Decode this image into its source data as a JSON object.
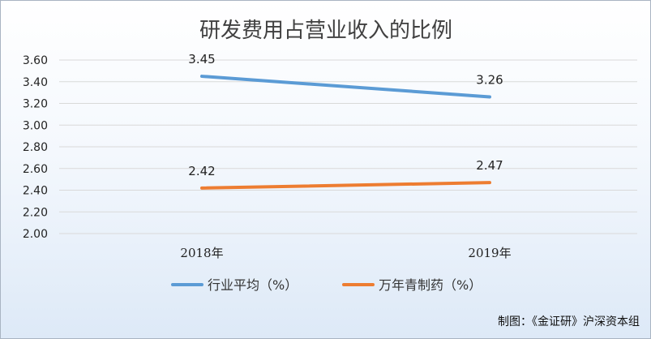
{
  "chart_data": {
    "type": "line",
    "title": "研发费用占营业收入的比例",
    "categories": [
      "2018年",
      "2019年"
    ],
    "ylim": [
      2.0,
      3.6
    ],
    "yticks": [
      "3.60",
      "3.40",
      "3.20",
      "3.00",
      "2.80",
      "2.60",
      "2.40",
      "2.20",
      "2.00"
    ],
    "grid": true,
    "legend_position": "bottom",
    "series": [
      {
        "name": "行业平均（%）",
        "values": [
          3.45,
          3.26
        ],
        "labels": [
          "3.45",
          "3.26"
        ],
        "color": "#5b9bd5"
      },
      {
        "name": "万年青制药（%）",
        "values": [
          2.42,
          2.47
        ],
        "labels": [
          "2.42",
          "2.47"
        ],
        "color": "#ed7d31"
      }
    ]
  },
  "credit": "制图：《金证研》沪深资本组",
  "colors": {
    "grid": "#d9d9d9",
    "text": "#222222"
  }
}
